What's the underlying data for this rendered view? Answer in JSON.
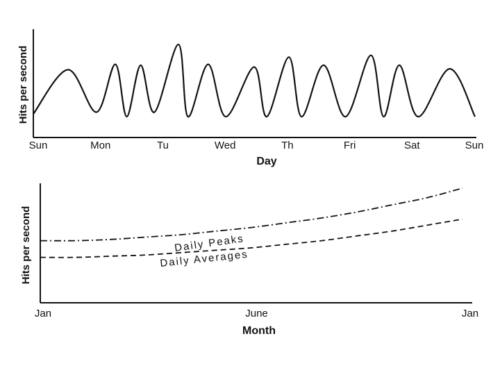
{
  "chart_data": [
    {
      "type": "line",
      "title": "",
      "xlabel": "Day",
      "ylabel": "Hits per second",
      "x_ticks": [
        "Sun",
        "Mon",
        "Tu",
        "Wed",
        "Th",
        "Fri",
        "Sat",
        "Sun"
      ],
      "xlim": [
        0,
        7
      ],
      "ylim": [
        0,
        1
      ],
      "grid": false,
      "series": [
        {
          "x": [
            0,
            0.55,
            1,
            1.3,
            1.48,
            1.7,
            1.92,
            2.3,
            2.45,
            2.77,
            3.05,
            3.5,
            3.7,
            4.05,
            4.25,
            4.6,
            4.95,
            5.35,
            5.55,
            5.8,
            6.1,
            6.6,
            7
          ],
          "values": [
            0.03,
            0.52,
            0.05,
            0.58,
            0.0,
            0.57,
            0.05,
            0.8,
            0.0,
            0.58,
            0.0,
            0.55,
            0.0,
            0.66,
            0.0,
            0.57,
            0.0,
            0.68,
            0.0,
            0.57,
            0.0,
            0.53,
            0.0
          ]
        }
      ]
    },
    {
      "type": "line",
      "title": "",
      "xlabel": "Month",
      "ylabel": "Hits per second",
      "x_ticks": [
        "Jan",
        "June",
        "Jan"
      ],
      "xlim": [
        0,
        12
      ],
      "ylim": [
        0,
        1
      ],
      "grid": false,
      "series": [
        {
          "name": "Daily Peaks",
          "style": "dash-dot",
          "x": [
            0,
            1,
            2,
            3,
            4,
            5,
            6,
            7,
            8,
            9,
            10,
            11,
            12
          ],
          "values": [
            0.52,
            0.52,
            0.53,
            0.55,
            0.57,
            0.6,
            0.63,
            0.67,
            0.71,
            0.76,
            0.82,
            0.88,
            0.96
          ]
        },
        {
          "name": "Daily Averages",
          "style": "dashed",
          "x": [
            0,
            1,
            2,
            3,
            4,
            5,
            6,
            7,
            8,
            9,
            10,
            11,
            12
          ],
          "values": [
            0.38,
            0.38,
            0.39,
            0.4,
            0.42,
            0.44,
            0.46,
            0.49,
            0.52,
            0.56,
            0.6,
            0.65,
            0.7
          ]
        }
      ]
    }
  ]
}
